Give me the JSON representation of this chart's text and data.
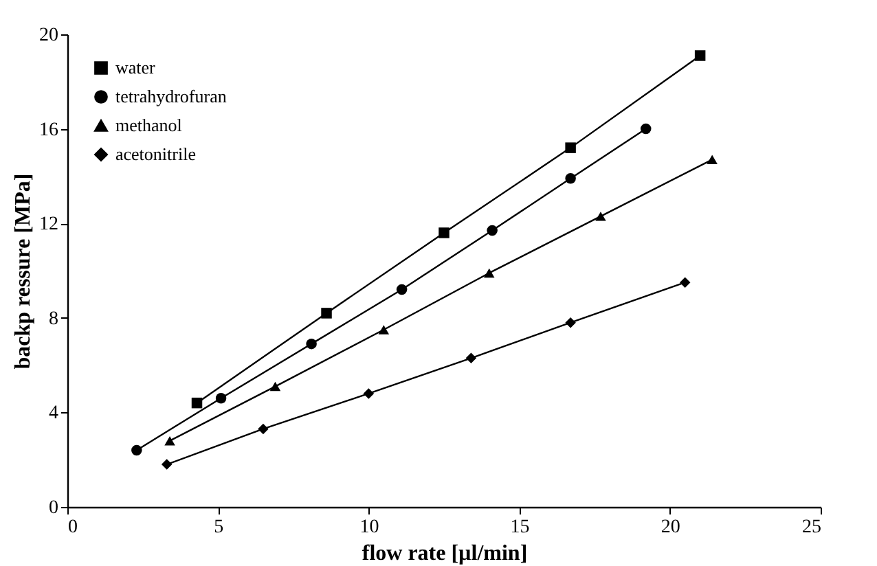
{
  "chart_data": {
    "type": "line",
    "xlabel": "flow rate [µl/min]",
    "ylabel": "backp ressure [MPa]",
    "xlim": [
      0,
      25
    ],
    "xticks": [
      0,
      5,
      10,
      15,
      20,
      25
    ],
    "ylim": [
      0,
      20
    ],
    "yticks": [
      0,
      4,
      8,
      12,
      16,
      20
    ],
    "grid": false,
    "legend": "top left",
    "line_style": "solid",
    "series": [
      {
        "name": "water",
        "color": "#000000",
        "marker": "square",
        "x": [
          4.3,
          8.6,
          12.5,
          16.7,
          21.0
        ],
        "values": [
          4.4,
          8.2,
          11.6,
          15.2,
          19.1
        ]
      },
      {
        "name": "tetrahydrofuran",
        "color": "#000000",
        "marker": "circle",
        "x": [
          2.3,
          5.1,
          8.1,
          11.1,
          14.1,
          16.7,
          19.2
        ],
        "values": [
          2.4,
          4.6,
          6.9,
          9.2,
          11.7,
          13.9,
          16.0
        ]
      },
      {
        "name": "methanol",
        "color": "#000000",
        "marker": "triangle",
        "x": [
          3.4,
          6.9,
          10.5,
          14.0,
          17.7,
          21.4
        ],
        "values": [
          2.8,
          5.1,
          7.5,
          9.9,
          12.3,
          14.7
        ]
      },
      {
        "name": "acetonitrile",
        "color": "#000000",
        "marker": "diamond",
        "x": [
          3.3,
          6.5,
          10.0,
          13.4,
          16.7,
          20.5
        ],
        "values": [
          1.8,
          3.3,
          4.8,
          6.3,
          7.8,
          9.5
        ]
      }
    ]
  }
}
